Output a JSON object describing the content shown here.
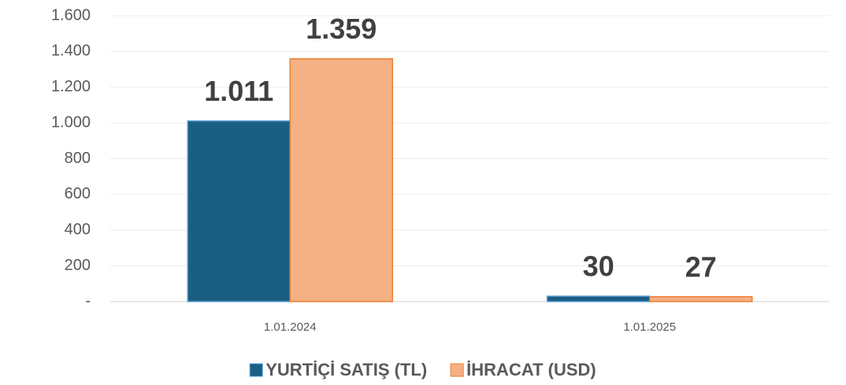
{
  "chart_data": {
    "type": "bar",
    "categories": [
      "1.01.2024",
      "1.01.2025"
    ],
    "series": [
      {
        "name": "YURTİÇİ SATIŞ (TL)",
        "color": "#1a5e82",
        "values": [
          1011,
          30
        ],
        "value_labels": [
          "1.011",
          "30"
        ]
      },
      {
        "name": "İHRACAT (USD)",
        "color": "#f4b183",
        "values": [
          1359,
          27
        ],
        "value_labels": [
          "1.359",
          "27"
        ]
      }
    ],
    "ylim": [
      0,
      1600
    ],
    "yticks": [
      {
        "value": 0,
        "label": "-"
      },
      200,
      400,
      600,
      800,
      {
        "value": 1000,
        "label": "1.000"
      },
      {
        "value": 1200,
        "label": "1.200"
      },
      {
        "value": 1400,
        "label": "1.400"
      },
      {
        "value": 1600,
        "label": "1.600"
      }
    ],
    "grid": true,
    "legend": "bottom"
  }
}
